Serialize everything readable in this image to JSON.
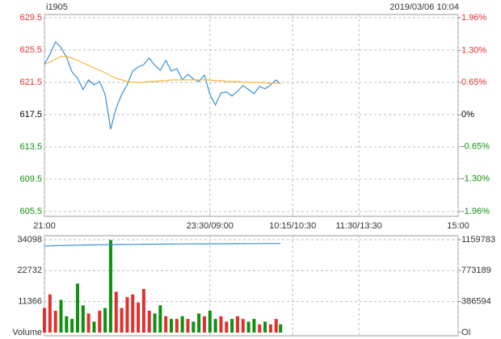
{
  "chart_data": [
    {
      "type": "line",
      "title": "i1905",
      "subtitle": "2019/03/06 10:04",
      "x": [
        0,
        5,
        10,
        15,
        20,
        25,
        30,
        35,
        40,
        45,
        50,
        55,
        60,
        65,
        70,
        75,
        80,
        85,
        90,
        95,
        100,
        105,
        110,
        115,
        120,
        125,
        130,
        135,
        140,
        145,
        150,
        155,
        160,
        165,
        170,
        175,
        180,
        185,
        190,
        195,
        200,
        205,
        210,
        214
      ],
      "series": [
        {
          "color": "#3a8fd8",
          "values": [
            623.7,
            625.0,
            626.5,
            625.8,
            624.6,
            622.8,
            622.0,
            620.6,
            621.8,
            621.2,
            621.6,
            620.0,
            615.7,
            618.3,
            620.0,
            621.2,
            622.9,
            623.4,
            623.7,
            624.5,
            623.6,
            623.0,
            624.2,
            622.9,
            623.2,
            621.8,
            622.5,
            621.9,
            621.6,
            622.4,
            620.0,
            618.7,
            620.2,
            620.3,
            619.8,
            620.4,
            621.1,
            620.6,
            620.1,
            621.0,
            620.7,
            621.2,
            621.8,
            621.3
          ]
        },
        {
          "color": "#f0b840",
          "values": [
            623.7,
            624.0,
            624.4,
            624.7,
            624.7,
            624.5,
            624.2,
            623.9,
            623.6,
            623.3,
            623.0,
            622.7,
            622.3,
            622.0,
            621.8,
            621.6,
            621.5,
            621.5,
            621.5,
            621.6,
            621.6,
            621.7,
            621.7,
            621.8,
            621.8,
            621.8,
            621.8,
            621.8,
            621.8,
            621.8,
            621.8,
            621.7,
            621.7,
            621.6,
            621.6,
            621.6,
            621.5,
            621.5,
            621.5,
            621.5,
            621.4,
            621.4,
            621.4,
            621.4
          ]
        }
      ],
      "xlim": [
        0,
        375
      ],
      "xticks": [
        {
          "value": 0,
          "label": "21:00"
        },
        {
          "value": 150,
          "label": "23:30/09:00"
        },
        {
          "value": 225,
          "label": "10:15/10:30"
        },
        {
          "value": 285,
          "label": "11:30/13:30"
        },
        {
          "value": 375,
          "label": "15:00"
        }
      ],
      "ylim": [
        605.5,
        629.5
      ],
      "yticks": [
        605.5,
        609.5,
        613.5,
        617.5,
        621.5,
        625.5,
        629.5
      ],
      "y2lim": [
        -1.96,
        1.96
      ],
      "y2ticks": [
        {
          "value": -1.96,
          "label": "-1.96%"
        },
        {
          "value": -1.3,
          "label": "-1.30%"
        },
        {
          "value": -0.65,
          "label": "-0.65%"
        },
        {
          "value": 0,
          "label": "0%"
        },
        {
          "value": 0.65,
          "label": "0.65%"
        },
        {
          "value": 1.3,
          "label": "1.30%"
        },
        {
          "value": 1.96,
          "label": "1.96%"
        }
      ],
      "up_color": "#e03030",
      "down_color": "#109010",
      "grid": true
    },
    {
      "type": "bar",
      "x": [
        0,
        5,
        10,
        15,
        20,
        25,
        30,
        35,
        40,
        45,
        50,
        55,
        60,
        65,
        70,
        75,
        80,
        85,
        90,
        95,
        100,
        105,
        110,
        115,
        120,
        125,
        130,
        135,
        140,
        145,
        150,
        155,
        160,
        165,
        170,
        175,
        180,
        185,
        190,
        195,
        200,
        205,
        210,
        214
      ],
      "values": [
        9000,
        14000,
        8000,
        12000,
        6000,
        5000,
        18000,
        10000,
        7000,
        4000,
        8000,
        9000,
        34000,
        15000,
        9000,
        13000,
        14000,
        11000,
        16000,
        8000,
        7000,
        10000,
        6000,
        5000,
        5000,
        6000,
        5000,
        4000,
        7000,
        6000,
        8000,
        5000,
        6000,
        4000,
        5000,
        6000,
        5000,
        4000,
        5000,
        3000,
        4000,
        3000,
        5000,
        3000
      ],
      "up_color": "#e03030",
      "down_color": "#109010",
      "line": {
        "color": "#3a8fd8",
        "axis": "y2",
        "values": [
          1080000,
          1082000,
          1085000,
          1087000,
          1088000,
          1090000,
          1091000,
          1093000,
          1094000,
          1095000,
          1096000,
          1097000,
          1098000,
          1099000,
          1100000,
          1101000,
          1101500,
          1102000,
          1103000,
          1103500,
          1104000,
          1104500,
          1105000,
          1105500,
          1106000,
          1106500,
          1107000,
          1107500,
          1108000,
          1108000,
          1108500,
          1109000,
          1109000,
          1109500,
          1110000,
          1110000,
          1110500,
          1111000,
          1111000,
          1111500,
          1112000,
          1112000,
          1112500,
          1112500
        ]
      },
      "xlim": [
        0,
        375
      ],
      "ylim": [
        0,
        34098
      ],
      "yticks": [
        {
          "value": 0,
          "label": "Volume"
        },
        11366,
        22732,
        34098
      ],
      "y2lim": [
        0,
        1159783
      ],
      "y2ticks": [
        {
          "value": 0,
          "label": "OI"
        },
        386594,
        773189,
        1159783
      ],
      "grid": true
    }
  ]
}
